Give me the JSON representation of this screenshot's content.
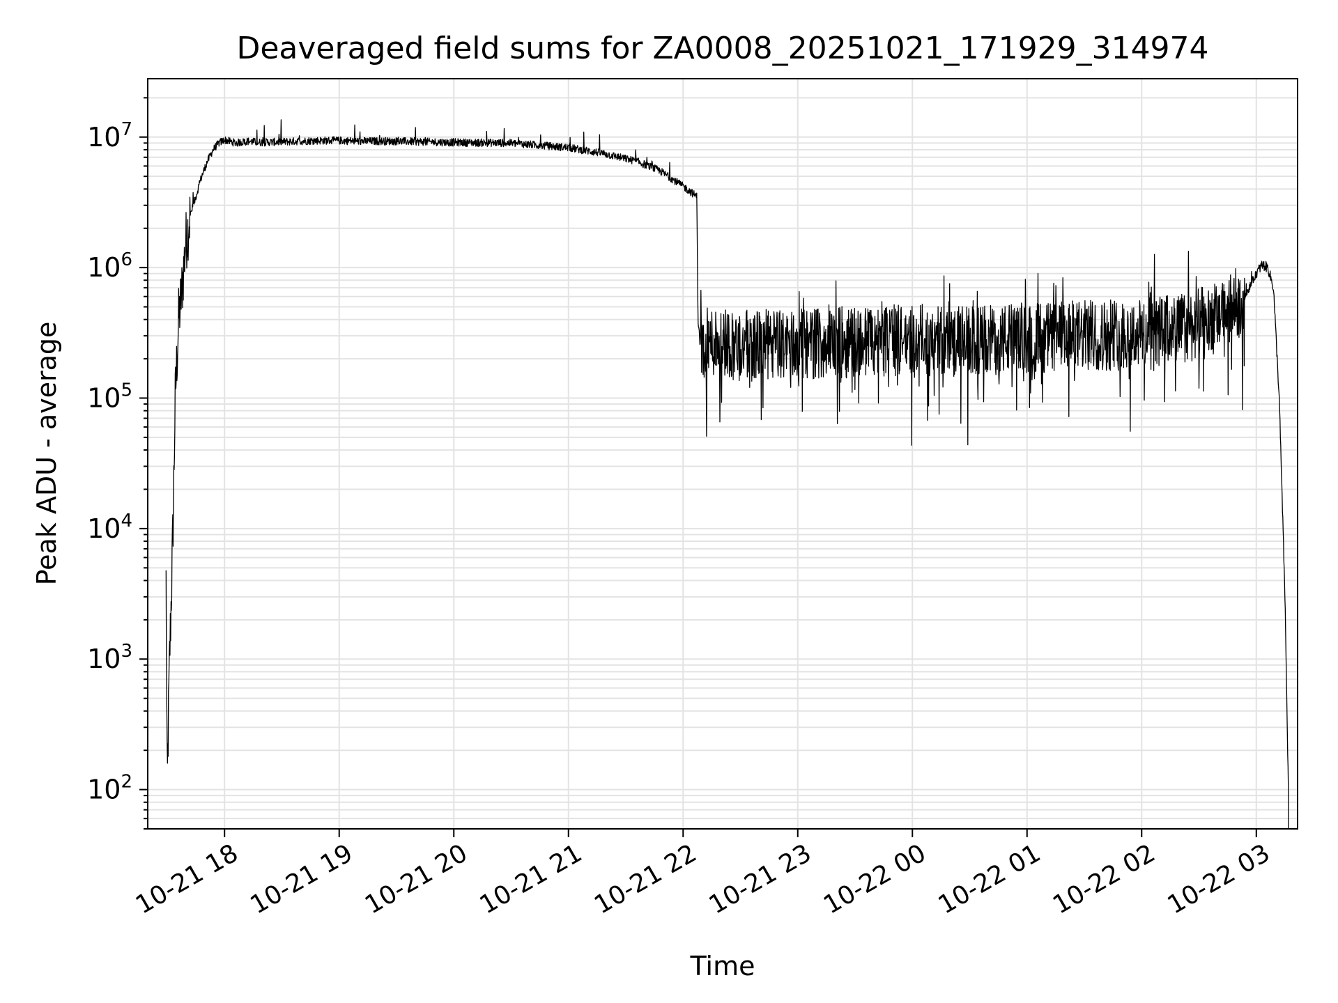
{
  "chart_data": {
    "type": "line",
    "title": "Deaveraged field sums for ZA0008_20251021_171929_314974",
    "xlabel": "Time",
    "ylabel": "Peak ADU - average",
    "yscale": "log",
    "xlim_hours": [
      -0.67,
      9.36
    ],
    "ylim": [
      50,
      28000000
    ],
    "grid": true,
    "x_ticks": [
      {
        "hours": 0,
        "label": "10-21 18"
      },
      {
        "hours": 1,
        "label": "10-21 19"
      },
      {
        "hours": 2,
        "label": "10-21 20"
      },
      {
        "hours": 3,
        "label": "10-21 21"
      },
      {
        "hours": 4,
        "label": "10-21 22"
      },
      {
        "hours": 5,
        "label": "10-21 23"
      },
      {
        "hours": 6,
        "label": "10-22 00"
      },
      {
        "hours": 7,
        "label": "10-22 01"
      },
      {
        "hours": 8,
        "label": "10-22 02"
      },
      {
        "hours": 9,
        "label": "10-22 03"
      }
    ],
    "y_ticks": [
      {
        "value": 100,
        "base": "10",
        "exp": "2"
      },
      {
        "value": 1000,
        "base": "10",
        "exp": "3"
      },
      {
        "value": 10000,
        "base": "10",
        "exp": "4"
      },
      {
        "value": 100000,
        "base": "10",
        "exp": "5"
      },
      {
        "value": 1000000,
        "base": "10",
        "exp": "6"
      },
      {
        "value": 10000000,
        "base": "10",
        "exp": "7"
      }
    ],
    "series": [
      {
        "name": "Peak ADU - average",
        "color": "#000000",
        "x_hours": [
          -0.51,
          -0.5,
          -0.48,
          -0.47,
          -0.45,
          -0.43,
          -0.4,
          -0.37,
          -0.34,
          -0.3,
          -0.25,
          -0.2,
          -0.15,
          -0.1,
          -0.05,
          0.0,
          0.1,
          0.2,
          0.3,
          0.5,
          0.8,
          1.0,
          1.2,
          1.5,
          2.0,
          2.5,
          3.0,
          3.3,
          3.6,
          3.8,
          3.9,
          4.0,
          4.12,
          4.13,
          4.15,
          4.3,
          4.5,
          5.0,
          5.5,
          6.0,
          6.5,
          7.0,
          7.5,
          8.0,
          8.4,
          8.7,
          8.9,
          9.0,
          9.05,
          9.1,
          9.15,
          9.2,
          9.25,
          9.28
        ],
        "values": [
          4000,
          100,
          1000,
          2000,
          10000,
          100000,
          400000,
          700000,
          1500000,
          2500000,
          3500000,
          5000000,
          6500000,
          8000000,
          9000000,
          9500000,
          9000000,
          9300000,
          9100000,
          9200000,
          9400000,
          9400000,
          9300000,
          9300000,
          9100000,
          9000000,
          8300000,
          7500000,
          6500000,
          5500000,
          4800000,
          4200000,
          3500000,
          400000,
          250000,
          280000,
          250000,
          260000,
          270000,
          280000,
          270000,
          290000,
          300000,
          310000,
          350000,
          420000,
          600000,
          900000,
          1050000,
          1000000,
          700000,
          100000,
          3000,
          100
        ],
        "noise_band_low": [
          {
            "from_hours": 4.15,
            "to_hours": 8.9,
            "min_value": 33000
          }
        ],
        "noise_band_high": [
          {
            "from_hours": 4.15,
            "to_hours": 8.9,
            "max_value": 1500000
          }
        ]
      }
    ]
  }
}
